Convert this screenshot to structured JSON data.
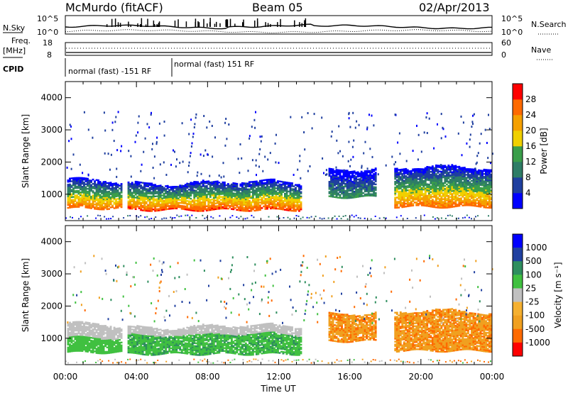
{
  "header": {
    "station": "McMurdo (fitACF)",
    "beam": "Beam 05",
    "date": "02/Apr/2013"
  },
  "top_panels": {
    "nsky_label": "N.Sky",
    "nsky_scale_hi": "10^5",
    "nsky_scale_lo": "10^0",
    "nsearch_label": "N.Search",
    "nsearch_scale_hi": "10^5",
    "nsearch_scale_lo": "10^0",
    "freq_label": "Freq.",
    "freq_unit": "[MHz]",
    "freq_hi": "18",
    "freq_lo": "8",
    "nave_label": "Nave",
    "nave_hi": "60",
    "nave_lo": "0",
    "cpid_label": "CPID",
    "cpid_segments": [
      {
        "label": "normal (fast) -151 RF",
        "start_hour": 0,
        "end_hour": 6
      },
      {
        "label": "normal (fast) 151 RF",
        "start_hour": 6,
        "end_hour": 24
      }
    ]
  },
  "colors": {
    "power": [
      "#0000ff",
      "#1f3f9f",
      "#2e7d66",
      "#3a9e4a",
      "#f0d000",
      "#f5a000",
      "#ff6a00",
      "#ff0000"
    ],
    "velocity": [
      "#ff0000",
      "#ff6a00",
      "#f0a020",
      "#f5b030",
      "#c0c0c0",
      "#40c040",
      "#2e8e5e",
      "#2040a0",
      "#0000ff"
    ]
  },
  "chart_data": [
    {
      "type": "heatmap",
      "name": "power",
      "ylabel": "Slant Range [km]",
      "xlabel": "Time UT",
      "x_ticks": [
        "00:00",
        "04:00",
        "08:00",
        "12:00",
        "16:00",
        "20:00",
        "00:00"
      ],
      "y_ticks": [
        1000,
        2000,
        3000,
        4000
      ],
      "xlim_hours": [
        0,
        24
      ],
      "ylim_km": [
        180,
        4500
      ],
      "colorbar_label": "Power [dB]",
      "colorbar_ticks": [
        4,
        8,
        12,
        16,
        20,
        24,
        28
      ],
      "colorbar_range": [
        0,
        32
      ],
      "echo_regions": [
        {
          "start_hour": 0.1,
          "end_hour": 3.2,
          "bottom_km": 550,
          "top_km": 1400,
          "peak_db": 26
        },
        {
          "start_hour": 3.5,
          "end_hour": 13.2,
          "bottom_km": 500,
          "top_km": 1350,
          "peak_db": 28
        },
        {
          "start_hour": 14.8,
          "end_hour": 17.5,
          "bottom_km": 900,
          "top_km": 1800,
          "peak_db": 12
        },
        {
          "start_hour": 18.5,
          "end_hour": 24,
          "bottom_km": 600,
          "top_km": 1800,
          "peak_db": 26
        }
      ]
    },
    {
      "type": "heatmap",
      "name": "velocity",
      "ylabel": "Slant Range [km]",
      "xlabel": "Time UT",
      "x_ticks": [
        "00:00",
        "04:00",
        "08:00",
        "12:00",
        "16:00",
        "20:00",
        "00:00"
      ],
      "y_ticks": [
        1000,
        2000,
        3000,
        4000
      ],
      "xlim_hours": [
        0,
        24
      ],
      "ylim_km": [
        180,
        4500
      ],
      "colorbar_label": "Velocity [m s⁻¹]",
      "colorbar_ticks": [
        "1000",
        "500",
        "100",
        "25",
        "-25",
        "-100",
        "-500",
        "-1000"
      ],
      "echo_regions": [
        {
          "start_hour": 0.1,
          "end_hour": 3.2,
          "bottom_km": 550,
          "top_km": 1400,
          "velocity": 25
        },
        {
          "start_hour": 3.5,
          "end_hour": 13.2,
          "bottom_km": 500,
          "top_km": 1350,
          "velocity": 100
        },
        {
          "start_hour": 14.8,
          "end_hour": 17.5,
          "bottom_km": 900,
          "top_km": 1800,
          "velocity": -100
        },
        {
          "start_hour": 18.5,
          "end_hour": 24,
          "bottom_km": 600,
          "top_km": 1800,
          "velocity": -100
        }
      ]
    }
  ]
}
